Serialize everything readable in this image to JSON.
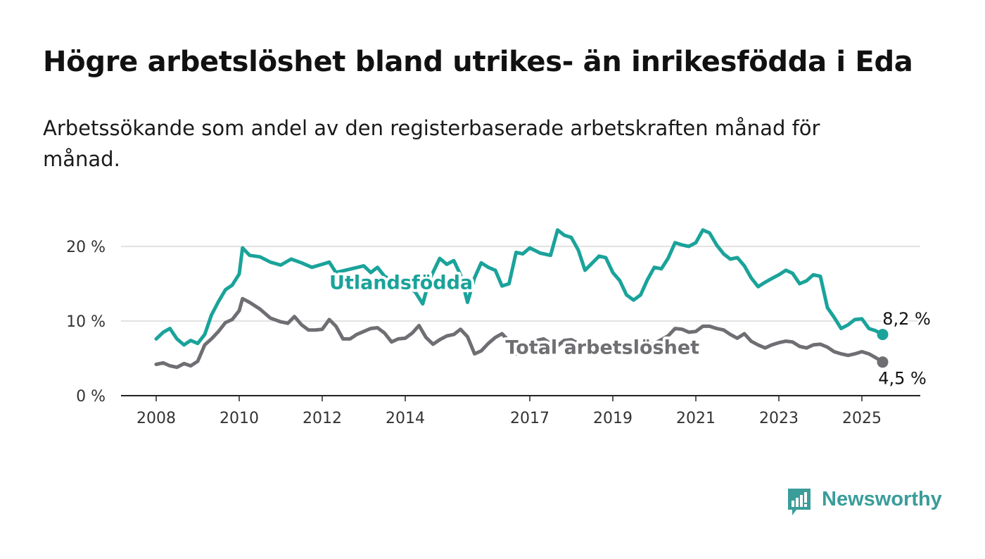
{
  "title": "Högre arbetslöshet bland utrikes- än inrikesfödda i Eda",
  "subtitle": "Arbetssökande som andel av den registerbaserade arbetskraften månad för månad.",
  "brand": {
    "name": "Newsworthy",
    "color": "#3a9d9a",
    "icon": "bar-chart-speech-bubble-icon"
  },
  "chart_data": {
    "type": "line",
    "x_unit": "year",
    "xlim": [
      2007.7,
      2026.35
    ],
    "ylim": [
      0,
      20
    ],
    "y_ticks": [
      0,
      10,
      20
    ],
    "y_tick_labels": [
      "0 %",
      "10 %",
      "20 %"
    ],
    "x_ticks": [
      2008,
      2010,
      2012,
      2014,
      2017,
      2019,
      2021,
      2023,
      2025
    ],
    "grid": "horizontal",
    "series": [
      {
        "name": "Utlandsfödda",
        "color": "#1aa39a",
        "end_label": "8,2 %",
        "points": [
          [
            2008.0,
            7.6
          ],
          [
            2008.17,
            8.5
          ],
          [
            2008.33,
            9.0
          ],
          [
            2008.5,
            7.6
          ],
          [
            2008.67,
            6.8
          ],
          [
            2008.83,
            7.4
          ],
          [
            2009.0,
            7.0
          ],
          [
            2009.17,
            8.2
          ],
          [
            2009.33,
            10.8
          ],
          [
            2009.5,
            12.6
          ],
          [
            2009.67,
            14.2
          ],
          [
            2009.83,
            14.8
          ],
          [
            2010.0,
            16.3
          ],
          [
            2010.08,
            19.8
          ],
          [
            2010.25,
            18.8
          ],
          [
            2010.5,
            18.6
          ],
          [
            2010.75,
            17.9
          ],
          [
            2011.0,
            17.5
          ],
          [
            2011.25,
            18.3
          ],
          [
            2011.5,
            17.8
          ],
          [
            2011.75,
            17.2
          ],
          [
            2012.0,
            17.6
          ],
          [
            2012.17,
            17.9
          ],
          [
            2012.33,
            16.5
          ],
          [
            2013.0,
            17.4
          ],
          [
            2013.17,
            16.5
          ],
          [
            2013.33,
            17.2
          ],
          [
            2013.5,
            16.0
          ],
          [
            2013.75,
            15.2
          ],
          [
            2014.0,
            15.2
          ],
          [
            2014.25,
            13.8
          ],
          [
            2014.42,
            12.3
          ],
          [
            2014.58,
            15.5
          ],
          [
            2014.83,
            18.4
          ],
          [
            2015.0,
            17.6
          ],
          [
            2015.17,
            18.1
          ],
          [
            2015.33,
            16.2
          ],
          [
            2015.5,
            12.5
          ],
          [
            2015.67,
            15.8
          ],
          [
            2015.83,
            17.8
          ],
          [
            2016.0,
            17.2
          ],
          [
            2016.17,
            16.8
          ],
          [
            2016.33,
            14.7
          ],
          [
            2016.5,
            15.0
          ],
          [
            2016.67,
            19.2
          ],
          [
            2016.83,
            19.0
          ],
          [
            2017.0,
            19.8
          ],
          [
            2017.25,
            19.1
          ],
          [
            2017.5,
            18.8
          ],
          [
            2017.67,
            22.2
          ],
          [
            2017.83,
            21.5
          ],
          [
            2018.0,
            21.2
          ],
          [
            2018.17,
            19.5
          ],
          [
            2018.33,
            16.8
          ],
          [
            2018.67,
            18.7
          ],
          [
            2018.83,
            18.5
          ],
          [
            2019.0,
            16.5
          ],
          [
            2019.17,
            15.4
          ],
          [
            2019.33,
            13.5
          ],
          [
            2019.5,
            12.8
          ],
          [
            2019.67,
            13.5
          ],
          [
            2019.83,
            15.5
          ],
          [
            2020.0,
            17.2
          ],
          [
            2020.17,
            17.0
          ],
          [
            2020.33,
            18.4
          ],
          [
            2020.5,
            20.5
          ],
          [
            2020.67,
            20.2
          ],
          [
            2020.83,
            20.0
          ],
          [
            2021.0,
            20.5
          ],
          [
            2021.17,
            22.2
          ],
          [
            2021.33,
            21.8
          ],
          [
            2021.5,
            20.2
          ],
          [
            2021.67,
            19.0
          ],
          [
            2021.83,
            18.3
          ],
          [
            2022.0,
            18.5
          ],
          [
            2022.17,
            17.4
          ],
          [
            2022.33,
            15.8
          ],
          [
            2022.5,
            14.6
          ],
          [
            2022.67,
            15.2
          ],
          [
            2022.83,
            15.7
          ],
          [
            2023.0,
            16.2
          ],
          [
            2023.17,
            16.8
          ],
          [
            2023.33,
            16.4
          ],
          [
            2023.5,
            15.0
          ],
          [
            2023.67,
            15.4
          ],
          [
            2023.83,
            16.2
          ],
          [
            2024.0,
            16.0
          ],
          [
            2024.17,
            11.8
          ],
          [
            2024.33,
            10.5
          ],
          [
            2024.5,
            9.0
          ],
          [
            2024.67,
            9.5
          ],
          [
            2024.83,
            10.2
          ],
          [
            2025.0,
            10.3
          ],
          [
            2025.17,
            9.0
          ],
          [
            2025.33,
            8.7
          ],
          [
            2025.5,
            8.2
          ]
        ]
      },
      {
        "name": "Total arbetslöshet",
        "color": "#6e6e73",
        "end_label": "4,5 %",
        "points": [
          [
            2008.0,
            4.2
          ],
          [
            2008.17,
            4.4
          ],
          [
            2008.33,
            4.0
          ],
          [
            2008.5,
            3.8
          ],
          [
            2008.67,
            4.3
          ],
          [
            2008.83,
            4.0
          ],
          [
            2009.0,
            4.6
          ],
          [
            2009.17,
            6.8
          ],
          [
            2009.33,
            7.6
          ],
          [
            2009.5,
            8.6
          ],
          [
            2009.67,
            9.8
          ],
          [
            2009.83,
            10.2
          ],
          [
            2010.0,
            11.4
          ],
          [
            2010.08,
            13.0
          ],
          [
            2010.25,
            12.5
          ],
          [
            2010.5,
            11.6
          ],
          [
            2010.75,
            10.4
          ],
          [
            2011.0,
            9.9
          ],
          [
            2011.17,
            9.7
          ],
          [
            2011.33,
            10.6
          ],
          [
            2011.5,
            9.5
          ],
          [
            2011.67,
            8.8
          ],
          [
            2011.83,
            8.8
          ],
          [
            2012.0,
            8.9
          ],
          [
            2012.17,
            10.2
          ],
          [
            2012.33,
            9.3
          ],
          [
            2012.5,
            7.6
          ],
          [
            2012.67,
            7.6
          ],
          [
            2012.83,
            8.2
          ],
          [
            2013.0,
            8.6
          ],
          [
            2013.17,
            9.0
          ],
          [
            2013.33,
            9.1
          ],
          [
            2013.5,
            8.4
          ],
          [
            2013.67,
            7.2
          ],
          [
            2013.83,
            7.6
          ],
          [
            2014.0,
            7.7
          ],
          [
            2014.17,
            8.4
          ],
          [
            2014.33,
            9.4
          ],
          [
            2014.5,
            7.8
          ],
          [
            2014.67,
            6.9
          ],
          [
            2014.83,
            7.5
          ],
          [
            2015.0,
            8.0
          ],
          [
            2015.17,
            8.2
          ],
          [
            2015.33,
            8.9
          ],
          [
            2015.5,
            7.9
          ],
          [
            2015.67,
            5.6
          ],
          [
            2015.83,
            6.0
          ],
          [
            2016.0,
            7.0
          ],
          [
            2016.17,
            7.8
          ],
          [
            2016.33,
            8.3
          ],
          [
            2016.5,
            7.3
          ],
          [
            2016.67,
            5.6
          ],
          [
            2016.83,
            5.9
          ],
          [
            2017.0,
            6.8
          ],
          [
            2017.17,
            7.4
          ],
          [
            2017.33,
            7.6
          ],
          [
            2017.5,
            7.0
          ],
          [
            2017.67,
            6.7
          ],
          [
            2017.83,
            7.4
          ],
          [
            2018.0,
            7.5
          ],
          [
            2018.17,
            7.0
          ],
          [
            2018.33,
            6.6
          ],
          [
            2018.5,
            6.7
          ],
          [
            2018.67,
            6.6
          ],
          [
            2018.83,
            6.5
          ],
          [
            2019.0,
            6.3
          ],
          [
            2019.17,
            6.2
          ],
          [
            2019.33,
            6.1
          ],
          [
            2019.5,
            6.2
          ],
          [
            2019.67,
            6.4
          ],
          [
            2019.83,
            6.8
          ],
          [
            2020.0,
            7.0
          ],
          [
            2020.17,
            7.5
          ],
          [
            2020.33,
            8.0
          ],
          [
            2020.5,
            9.0
          ],
          [
            2020.67,
            8.9
          ],
          [
            2020.83,
            8.5
          ],
          [
            2021.0,
            8.6
          ],
          [
            2021.17,
            9.3
          ],
          [
            2021.33,
            9.3
          ],
          [
            2021.5,
            9.0
          ],
          [
            2021.67,
            8.8
          ],
          [
            2021.83,
            8.2
          ],
          [
            2022.0,
            7.7
          ],
          [
            2022.17,
            8.3
          ],
          [
            2022.33,
            7.3
          ],
          [
            2022.5,
            6.8
          ],
          [
            2022.67,
            6.4
          ],
          [
            2022.83,
            6.8
          ],
          [
            2023.0,
            7.1
          ],
          [
            2023.17,
            7.3
          ],
          [
            2023.33,
            7.2
          ],
          [
            2023.5,
            6.6
          ],
          [
            2023.67,
            6.4
          ],
          [
            2023.83,
            6.8
          ],
          [
            2024.0,
            6.9
          ],
          [
            2024.17,
            6.5
          ],
          [
            2024.33,
            5.9
          ],
          [
            2024.5,
            5.6
          ],
          [
            2024.67,
            5.4
          ],
          [
            2024.83,
            5.6
          ],
          [
            2025.0,
            5.9
          ],
          [
            2025.17,
            5.6
          ],
          [
            2025.33,
            5.1
          ],
          [
            2025.5,
            4.5
          ]
        ]
      }
    ],
    "annotations": [
      {
        "series": "Utlandsfödda",
        "text": "Utlandsfödda",
        "x": 2013.9,
        "y": 14.3
      },
      {
        "series": "Total arbetslöshet",
        "text": "Total arbetslöshet",
        "x": 2018.75,
        "y": 5.6
      }
    ]
  }
}
